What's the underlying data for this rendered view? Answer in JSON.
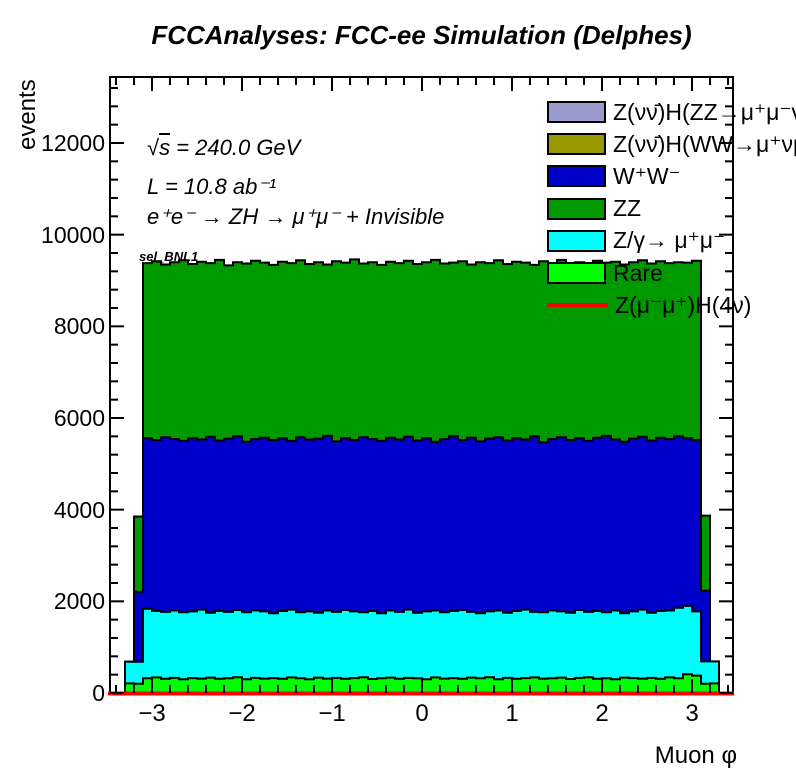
{
  "title": "FCCAnalyses: FCC-ee Simulation (Delphes)",
  "annotations": {
    "sqrt_prefix": "√",
    "sqrt_sym": "s",
    "sqrt_rest": " = 240.0 GeV",
    "lumi": "L = 10.8 ab⁻¹",
    "process": "e⁺e⁻ → ZH → μ⁺μ⁻ + Invisible",
    "selection": "sel_BNL1"
  },
  "axes": {
    "y_title": "events",
    "x_title": "Muon φ",
    "y_tick_values": [
      0,
      2000,
      4000,
      6000,
      8000,
      10000,
      12000
    ],
    "y_tick_labels": [
      "0",
      "2000",
      "4000",
      "6000",
      "8000",
      "10000",
      "12000"
    ],
    "x_tick_values": [
      -3,
      -2,
      -1,
      0,
      1,
      2,
      3
    ],
    "x_tick_labels": [
      "−3",
      "−2",
      "−1",
      "0",
      "1",
      "2",
      "3"
    ]
  },
  "legend": {
    "entries": [
      {
        "key": "zh-zz",
        "label": "Z(νν̄)H(ZZ→μ⁺μ⁻νν̄",
        "color": "#9999cc",
        "swatch": "box"
      },
      {
        "key": "zh-ww",
        "label": "Z(νν̄)H(WW→μ⁺νμ",
        "color": "#999900",
        "swatch": "box"
      },
      {
        "key": "ww",
        "label": "W⁺W⁻",
        "color": "#0000cc",
        "swatch": "box"
      },
      {
        "key": "zz",
        "label": "ZZ",
        "color": "#009900",
        "swatch": "box"
      },
      {
        "key": "zgamma",
        "label": "Z/γ→ μ⁺μ⁻",
        "color": "#00ffff",
        "swatch": "box"
      },
      {
        "key": "rare",
        "label": "Rare",
        "color": "#00ff00",
        "swatch": "box"
      },
      {
        "key": "signal",
        "label": "Z(μ⁻μ⁺)H(4ν)",
        "color": "#ff0000",
        "swatch": "line"
      }
    ]
  },
  "chart_data": {
    "type": "bar",
    "stacked": true,
    "title": "FCCAnalyses: FCC-ee Simulation (Delphes)",
    "xlabel": "Muon φ",
    "ylabel": "events",
    "xlim": [
      -3.46,
      3.46
    ],
    "ylim": [
      0,
      13440
    ],
    "grid": false,
    "legend_position": "top-right",
    "bins": {
      "x_start": -3.3,
      "bin_width": 0.1,
      "n_bins": 66
    },
    "note": "series values are cumulative stack tops in events, bottom series listed first; edge bins are partially filled",
    "series": [
      {
        "key": "rare",
        "name": "Rare",
        "color": "#00ff00",
        "cumulative_tops": [
          210,
          200,
          320,
          340,
          310,
          330,
          300,
          325,
          315,
          335,
          310,
          320,
          345,
          300,
          330,
          315,
          325,
          310,
          340,
          320,
          300,
          335,
          315,
          330,
          310,
          325,
          345,
          305,
          320,
          335,
          310,
          330,
          320,
          300,
          340,
          315,
          325,
          310,
          335,
          320,
          345,
          300,
          330,
          310,
          325,
          340,
          315,
          320,
          335,
          305,
          330,
          345,
          310,
          320,
          300,
          335,
          325,
          315,
          330,
          310,
          340,
          320,
          410,
          380,
          200,
          210
        ]
      },
      {
        "key": "zgamma",
        "name": "Z/γ→ μ⁺μ⁻",
        "color": "#00ffff",
        "cumulative_tops": [
          680,
          680,
          1840,
          1790,
          1770,
          1800,
          1760,
          1780,
          1820,
          1750,
          1790,
          1770,
          1810,
          1760,
          1800,
          1780,
          1740,
          1790,
          1820,
          1760,
          1780,
          1750,
          1800,
          1770,
          1810,
          1780,
          1760,
          1790,
          1740,
          1800,
          1770,
          1820,
          1750,
          1780,
          1800,
          1760,
          1790,
          1810,
          1770,
          1740,
          1780,
          1800,
          1750,
          1790,
          1820,
          1770,
          1760,
          1800,
          1780,
          1750,
          1810,
          1770,
          1790,
          1760,
          1800,
          1740,
          1780,
          1820,
          1750,
          1790,
          1800,
          1860,
          1900,
          1780,
          690,
          690
        ]
      },
      {
        "key": "ww",
        "name": "W⁺W⁻",
        "color": "#0000cc",
        "cumulative_tops": [
          680,
          2210,
          5560,
          5520,
          5580,
          5540,
          5500,
          5560,
          5530,
          5590,
          5510,
          5550,
          5600,
          5480,
          5540,
          5570,
          5520,
          5560,
          5500,
          5580,
          5530,
          5550,
          5610,
          5490,
          5560,
          5520,
          5580,
          5540,
          5500,
          5570,
          5530,
          5590,
          5510,
          5560,
          5480,
          5540,
          5600,
          5520,
          5570,
          5490,
          5550,
          5580,
          5510,
          5560,
          5530,
          5600,
          5470,
          5540,
          5580,
          5520,
          5560,
          5500,
          5570,
          5610,
          5530,
          5480,
          5550,
          5590,
          5510,
          5570,
          5540,
          5600,
          5560,
          5520,
          2230,
          680
        ]
      },
      {
        "key": "zz",
        "name": "ZZ",
        "color": "#009900",
        "cumulative_tops": [
          680,
          3850,
          9380,
          9420,
          9350,
          9400,
          9440,
          9360,
          9410,
          9380,
          9450,
          9330,
          9400,
          9370,
          9430,
          9390,
          9340,
          9410,
          9380,
          9440,
          9360,
          9400,
          9350,
          9420,
          9390,
          9460,
          9370,
          9400,
          9340,
          9410,
          9380,
          9430,
          9360,
          9400,
          9450,
          9370,
          9390,
          9420,
          9350,
          9400,
          9380,
          9440,
          9360,
          9410,
          9390,
          9340,
          9420,
          9380,
          9450,
          9360,
          9400,
          9370,
          9430,
          9390,
          9410,
          9350,
          9400,
          9440,
          9370,
          9420,
          9380,
          9400,
          9390,
          9430,
          3870,
          680
        ]
      }
    ],
    "signal_line": {
      "key": "signal",
      "name": "Z(μ⁻μ⁺)H(4ν)",
      "color": "#ff0000",
      "value": 0
    }
  }
}
